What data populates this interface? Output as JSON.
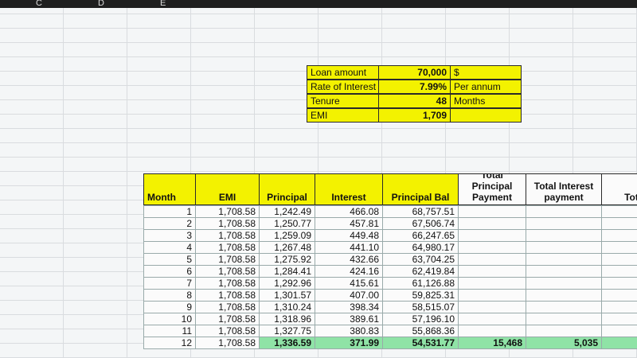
{
  "column_letters": [
    "C",
    "D",
    "E"
  ],
  "loan_box": [
    {
      "label": "Loan amount",
      "value": "70,000",
      "unit": "$"
    },
    {
      "label": "Rate of Interest",
      "value": "7.99%",
      "unit": "Per annum"
    },
    {
      "label": "Tenure",
      "value": "48",
      "unit": "Months"
    },
    {
      "label": "EMI",
      "value": "1,709"
    }
  ],
  "table": {
    "headers": [
      "Month",
      "EMI",
      "Principal",
      "Interest",
      "Principal Bal",
      "Total Principal Payment",
      "Total Interest payment",
      "Total"
    ],
    "rows": [
      [
        "1",
        "1,708.58",
        "1,242.49",
        "466.08",
        "68,757.51"
      ],
      [
        "2",
        "1,708.58",
        "1,250.77",
        "457.81",
        "67,506.74"
      ],
      [
        "3",
        "1,708.58",
        "1,259.09",
        "449.48",
        "66,247.65"
      ],
      [
        "4",
        "1,708.58",
        "1,267.48",
        "441.10",
        "64,980.17"
      ],
      [
        "5",
        "1,708.58",
        "1,275.92",
        "432.66",
        "63,704.25"
      ],
      [
        "6",
        "1,708.58",
        "1,284.41",
        "424.16",
        "62,419.84"
      ],
      [
        "7",
        "1,708.58",
        "1,292.96",
        "415.61",
        "61,126.88"
      ],
      [
        "8",
        "1,708.58",
        "1,301.57",
        "407.00",
        "59,825.31"
      ],
      [
        "9",
        "1,708.58",
        "1,310.24",
        "398.34",
        "58,515.07"
      ],
      [
        "10",
        "1,708.58",
        "1,318.96",
        "389.61",
        "57,196.10"
      ],
      [
        "11",
        "1,708.58",
        "1,327.75",
        "380.83",
        "55,868.36"
      ],
      [
        "12",
        "1,708.58",
        "1,336.59",
        "371.99",
        "54,531.77",
        "15,468",
        "5,035"
      ]
    ],
    "highlight_row": 11
  }
}
